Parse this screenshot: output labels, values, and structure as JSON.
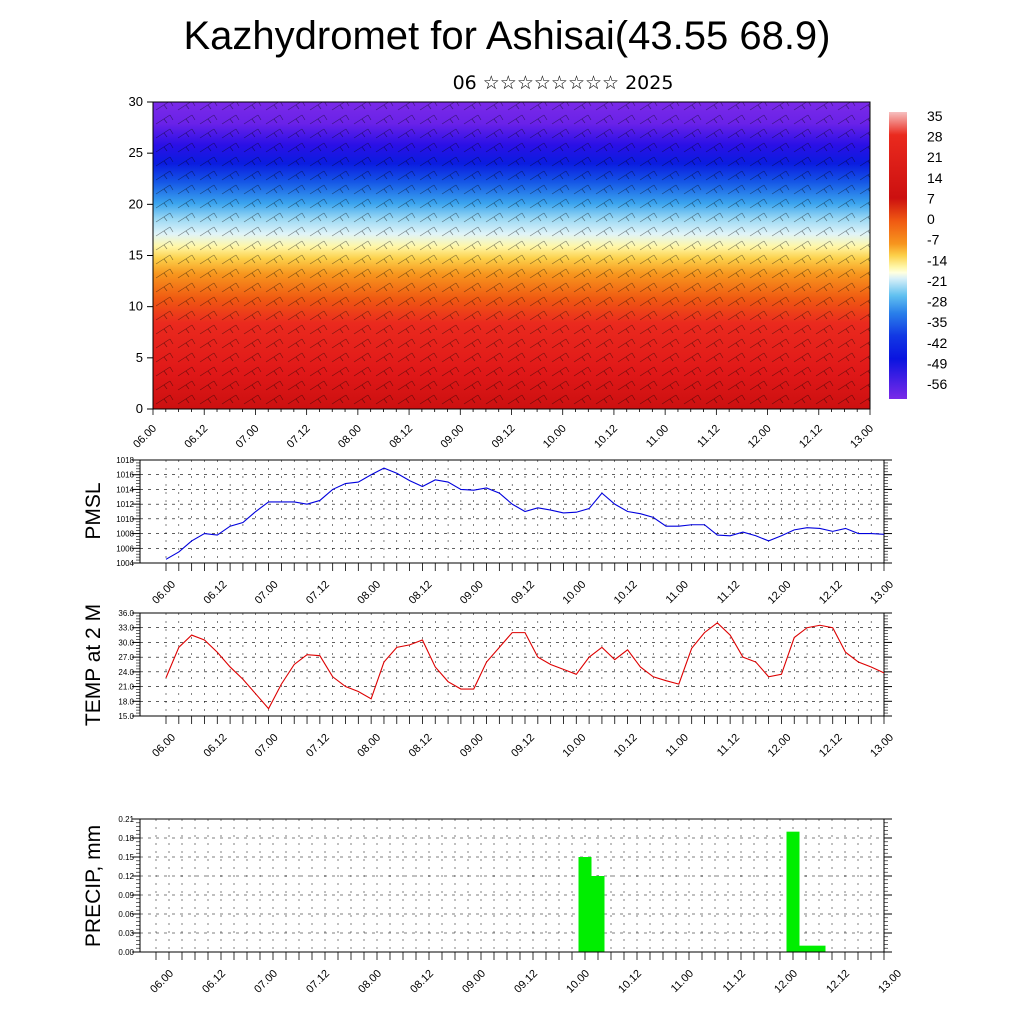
{
  "title": "Kazhydromet for Ashisai(43.55 68.9)",
  "subtitle": "06 ☆☆☆☆☆☆☆☆ 2025",
  "time_labels": [
    "06.00",
    "06.12",
    "07.00",
    "07.12",
    "08.00",
    "08.12",
    "09.00",
    "09.12",
    "10.00",
    "10.12",
    "11.00",
    "11.12",
    "12.00",
    "12.12",
    "13.00"
  ],
  "chart_data": [
    {
      "id": "cross-section",
      "type": "heatmap",
      "description_field": "temperature contour with wind barbs",
      "xlabel": "",
      "ylabel": "",
      "ylim": [
        0,
        30
      ],
      "y_ticks": [
        0,
        5,
        10,
        15,
        20,
        25,
        30
      ],
      "colorbar_labels": [
        "35",
        "28",
        "21",
        "14",
        "7",
        "0",
        "-7",
        "-14",
        "-21",
        "-28",
        "-35",
        "-42",
        "-49",
        "-56"
      ],
      "color_stops": [
        "#f4b8b8",
        "#ea2a1e",
        "#cc1010",
        "#f04a10",
        "#f78a20",
        "#fbc840",
        "#fef598",
        "#ffffd0",
        "#a8e4f4",
        "#40b0f0",
        "#1560e8",
        "#0a20e0",
        "#2a10e8",
        "#7a28e8"
      ]
    },
    {
      "id": "pmsl",
      "type": "line",
      "ylabel": "PMSL",
      "ylim": [
        1004,
        1018
      ],
      "y_ticks": [
        1004,
        1006,
        1008,
        1010,
        1012,
        1014,
        1016,
        1018
      ],
      "color": "#0000dd",
      "x_hours": [
        0,
        3,
        6,
        9,
        12,
        15,
        18,
        21,
        24,
        27,
        30,
        33,
        36,
        39,
        42,
        45,
        48,
        51,
        54,
        57,
        60,
        63,
        66,
        69,
        72,
        75,
        78,
        81,
        84,
        87,
        90,
        93,
        96,
        99,
        102,
        105,
        108,
        111,
        114,
        117,
        120,
        123,
        126,
        129,
        132,
        135,
        138,
        141,
        144,
        147,
        150,
        153,
        156,
        159,
        162,
        165,
        168
      ],
      "values": [
        1004.5,
        1005.5,
        1007,
        1008,
        1007.8,
        1009,
        1009.5,
        1011,
        1012.3,
        1012.3,
        1012.3,
        1012,
        1012.5,
        1014,
        1014.8,
        1015,
        1016,
        1016.9,
        1016.2,
        1015.2,
        1014.4,
        1015.3,
        1015,
        1014,
        1013.9,
        1014.2,
        1013.5,
        1012,
        1011,
        1011.5,
        1011.2,
        1010.8,
        1010.9,
        1011.4,
        1013.5,
        1012,
        1011,
        1010.7,
        1010.2,
        1009,
        1009,
        1009.2,
        1009.2,
        1007.8,
        1007.7,
        1008.2,
        1007.7,
        1007,
        1007.7,
        1008.5,
        1008.8,
        1008.7,
        1008.3,
        1008.7,
        1008,
        1008,
        1007.9
      ]
    },
    {
      "id": "temp2m",
      "type": "line",
      "ylabel": "TEMP at 2 M",
      "ylim": [
        15,
        36
      ],
      "y_ticks": [
        "15.0",
        "18.0",
        "21.0",
        "24.0",
        "27.0",
        "30.0",
        "33.0",
        "36.0"
      ],
      "color": "#dd0000",
      "x_hours": [
        0,
        3,
        6,
        9,
        12,
        15,
        18,
        21,
        24,
        27,
        30,
        33,
        36,
        39,
        42,
        45,
        48,
        51,
        54,
        57,
        60,
        63,
        66,
        69,
        72,
        75,
        78,
        81,
        84,
        87,
        90,
        93,
        96,
        99,
        102,
        105,
        108,
        111,
        114,
        117,
        120,
        123,
        126,
        129,
        132,
        135,
        138,
        141,
        144,
        147,
        150,
        153,
        156,
        159,
        162,
        165,
        168
      ],
      "values": [
        22.8,
        29,
        31.5,
        30.5,
        28,
        25,
        22.5,
        19.5,
        16.5,
        21.5,
        25.5,
        27.5,
        27.3,
        23,
        21,
        20,
        18.5,
        26,
        29,
        29.5,
        30.5,
        25,
        22,
        20.5,
        20.5,
        26,
        29,
        32,
        32,
        27,
        25.5,
        24.5,
        23.5,
        27,
        29,
        26.5,
        28.5,
        25,
        23,
        22.2,
        21.5,
        28.8,
        32,
        34,
        31.5,
        27,
        26,
        23,
        23.5,
        31,
        33,
        33.5,
        33,
        28,
        26,
        25,
        23.8
      ]
    },
    {
      "id": "precip",
      "type": "bar",
      "ylabel": "PRECIP, mm",
      "ylim": [
        0,
        0.21
      ],
      "y_ticks": [
        "0.00",
        "0.03",
        "0.06",
        "0.09",
        "0.12",
        "0.15",
        "0.18",
        "0.21"
      ],
      "color": "#00ee00",
      "bars": [
        {
          "x_hours": 99,
          "value": 0.15
        },
        {
          "x_hours": 102,
          "value": 0.12
        },
        {
          "x_hours": 147,
          "value": 0.19
        },
        {
          "x_hours": 150,
          "value": 0.01
        },
        {
          "x_hours": 153,
          "value": 0.01
        }
      ]
    }
  ]
}
